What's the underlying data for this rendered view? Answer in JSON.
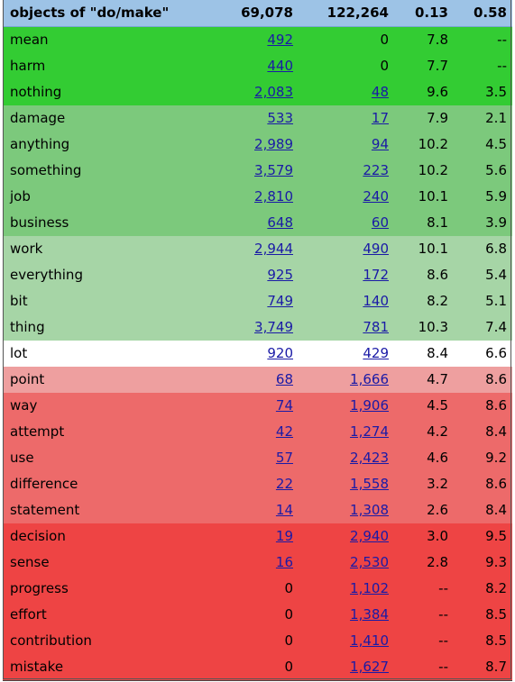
{
  "header": {
    "title": "objects of \"do/make\"",
    "col_a": "69,078",
    "col_b": "122,264",
    "col_c": "0.13",
    "col_d": "0.58"
  },
  "colors": {
    "header_bg": "#9dc3e6",
    "green_strong": "#33cc33",
    "green_medium": "#7cc97c",
    "green_light": "#a6d5a6",
    "neutral": "#ffffff",
    "red_light": "#ee9f9f",
    "red_medium": "#ed6a6a",
    "red_strong": "#ee4444",
    "link": "#1a1aa6"
  },
  "rows": [
    {
      "word": "mean",
      "a": "492",
      "a_link": true,
      "b": "0",
      "b_link": false,
      "c": "7.8",
      "d": "--",
      "band": "green_strong"
    },
    {
      "word": "harm",
      "a": "440",
      "a_link": true,
      "b": "0",
      "b_link": false,
      "c": "7.7",
      "d": "--",
      "band": "green_strong"
    },
    {
      "word": "nothing",
      "a": "2,083",
      "a_link": true,
      "b": "48",
      "b_link": true,
      "c": "9.6",
      "d": "3.5",
      "band": "green_strong"
    },
    {
      "word": "damage",
      "a": "533",
      "a_link": true,
      "b": "17",
      "b_link": true,
      "c": "7.9",
      "d": "2.1",
      "band": "green_medium"
    },
    {
      "word": "anything",
      "a": "2,989",
      "a_link": true,
      "b": "94",
      "b_link": true,
      "c": "10.2",
      "d": "4.5",
      "band": "green_medium"
    },
    {
      "word": "something",
      "a": "3,579",
      "a_link": true,
      "b": "223",
      "b_link": true,
      "c": "10.2",
      "d": "5.6",
      "band": "green_medium"
    },
    {
      "word": "job",
      "a": "2,810",
      "a_link": true,
      "b": "240",
      "b_link": true,
      "c": "10.1",
      "d": "5.9",
      "band": "green_medium"
    },
    {
      "word": "business",
      "a": "648",
      "a_link": true,
      "b": "60",
      "b_link": true,
      "c": "8.1",
      "d": "3.9",
      "band": "green_medium"
    },
    {
      "word": "work",
      "a": "2,944",
      "a_link": true,
      "b": "490",
      "b_link": true,
      "c": "10.1",
      "d": "6.8",
      "band": "green_light"
    },
    {
      "word": "everything",
      "a": "925",
      "a_link": true,
      "b": "172",
      "b_link": true,
      "c": "8.6",
      "d": "5.4",
      "band": "green_light"
    },
    {
      "word": "bit",
      "a": "749",
      "a_link": true,
      "b": "140",
      "b_link": true,
      "c": "8.2",
      "d": "5.1",
      "band": "green_light"
    },
    {
      "word": "thing",
      "a": "3,749",
      "a_link": true,
      "b": "781",
      "b_link": true,
      "c": "10.3",
      "d": "7.4",
      "band": "green_light"
    },
    {
      "word": "lot",
      "a": "920",
      "a_link": true,
      "b": "429",
      "b_link": true,
      "c": "8.4",
      "d": "6.6",
      "band": "neutral"
    },
    {
      "word": "point",
      "a": "68",
      "a_link": true,
      "b": "1,666",
      "b_link": true,
      "c": "4.7",
      "d": "8.6",
      "band": "red_light"
    },
    {
      "word": "way",
      "a": "74",
      "a_link": true,
      "b": "1,906",
      "b_link": true,
      "c": "4.5",
      "d": "8.6",
      "band": "red_medium"
    },
    {
      "word": "attempt",
      "a": "42",
      "a_link": true,
      "b": "1,274",
      "b_link": true,
      "c": "4.2",
      "d": "8.4",
      "band": "red_medium"
    },
    {
      "word": "use",
      "a": "57",
      "a_link": true,
      "b": "2,423",
      "b_link": true,
      "c": "4.6",
      "d": "9.2",
      "band": "red_medium"
    },
    {
      "word": "difference",
      "a": "22",
      "a_link": true,
      "b": "1,558",
      "b_link": true,
      "c": "3.2",
      "d": "8.6",
      "band": "red_medium"
    },
    {
      "word": "statement",
      "a": "14",
      "a_link": true,
      "b": "1,308",
      "b_link": true,
      "c": "2.6",
      "d": "8.4",
      "band": "red_medium"
    },
    {
      "word": "decision",
      "a": "19",
      "a_link": true,
      "b": "2,940",
      "b_link": true,
      "c": "3.0",
      "d": "9.5",
      "band": "red_strong"
    },
    {
      "word": "sense",
      "a": "16",
      "a_link": true,
      "b": "2,530",
      "b_link": true,
      "c": "2.8",
      "d": "9.3",
      "band": "red_strong"
    },
    {
      "word": "progress",
      "a": "0",
      "a_link": false,
      "b": "1,102",
      "b_link": true,
      "c": "--",
      "d": "8.2",
      "band": "red_strong"
    },
    {
      "word": "effort",
      "a": "0",
      "a_link": false,
      "b": "1,384",
      "b_link": true,
      "c": "--",
      "d": "8.5",
      "band": "red_strong"
    },
    {
      "word": "contribution",
      "a": "0",
      "a_link": false,
      "b": "1,410",
      "b_link": true,
      "c": "--",
      "d": "8.5",
      "band": "red_strong"
    },
    {
      "word": "mistake",
      "a": "0",
      "a_link": false,
      "b": "1,627",
      "b_link": true,
      "c": "--",
      "d": "8.7",
      "band": "red_strong"
    }
  ]
}
